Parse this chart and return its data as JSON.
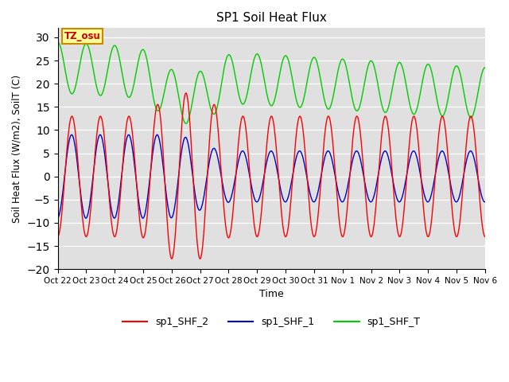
{
  "title": "SP1 Soil Heat Flux",
  "xlabel": "Time",
  "ylabel": "Soil Heat Flux (W/m2), SoilT (C)",
  "ylim": [
    -20,
    32
  ],
  "yticks": [
    -20,
    -15,
    -10,
    -5,
    0,
    5,
    10,
    15,
    20,
    25,
    30
  ],
  "bg_color": "#e0e0e0",
  "fig_color": "#ffffff",
  "line_colors": {
    "shf2": "#ff0000",
    "shf1": "#0000cc",
    "shfT": "#00cc00"
  },
  "legend_labels": [
    "sp1_SHF_2",
    "sp1_SHF_1",
    "sp1_SHF_T"
  ],
  "tz_label": "TZ_osu",
  "tz_box_color": "#ffff99",
  "tz_box_edge": "#cc8800",
  "tz_text_color": "#cc0000",
  "num_days": 15,
  "tick_labels": [
    "Oct 22",
    "Oct 23",
    "Oct 24",
    "Oct 25",
    "Oct 26",
    "Oct 27",
    "Oct 28",
    "Oct 29",
    "Oct 30",
    "Oct 31",
    "Nov 1",
    "Nov 2",
    "Nov 3",
    "Nov 4",
    "Nov 5",
    "Nov 6"
  ]
}
